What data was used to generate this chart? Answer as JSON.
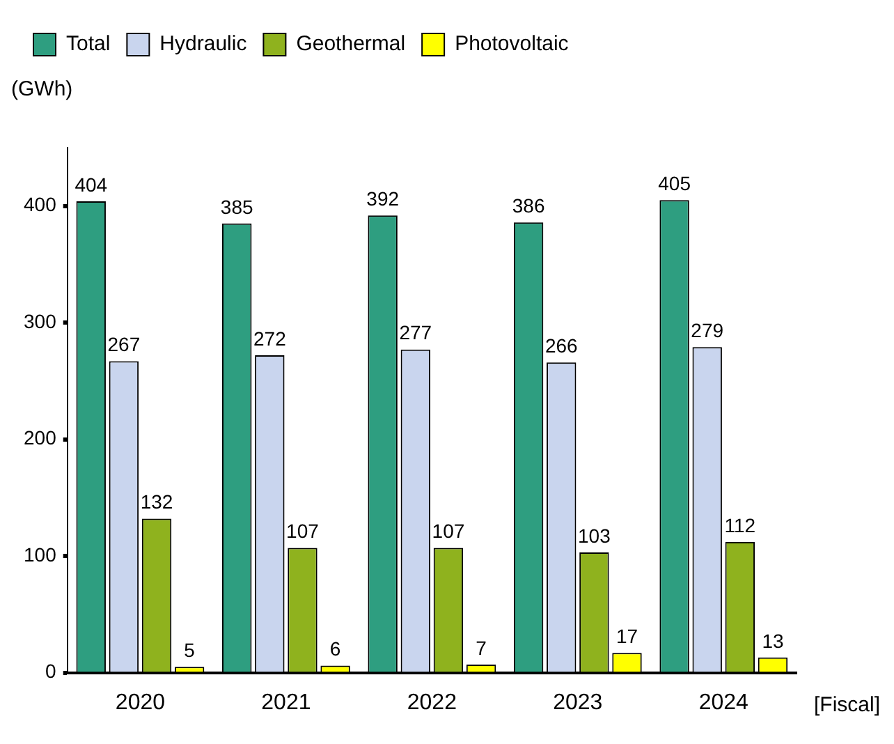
{
  "chart_data": {
    "type": "bar",
    "ylabel": "(GWh)",
    "xlabel": "[Fiscal]",
    "categories": [
      "2020",
      "2021",
      "2022",
      "2023",
      "2024"
    ],
    "series": [
      {
        "name": "Total",
        "color": "#2e9e80",
        "values": [
          404,
          385,
          392,
          386,
          405
        ]
      },
      {
        "name": "Hydraulic",
        "color": "#c9d5ee",
        "values": [
          267,
          272,
          277,
          266,
          279
        ]
      },
      {
        "name": "Geothermal",
        "color": "#8fb21e",
        "values": [
          132,
          107,
          107,
          103,
          112
        ]
      },
      {
        "name": "Photovoltaic",
        "color": "#ffff00",
        "values": [
          5,
          6,
          7,
          17,
          13
        ]
      }
    ],
    "ylim": [
      0,
      450
    ],
    "yticks": [
      0,
      100,
      200,
      300,
      400
    ],
    "grid": false,
    "legend": "top left",
    "data_labels": true
  }
}
